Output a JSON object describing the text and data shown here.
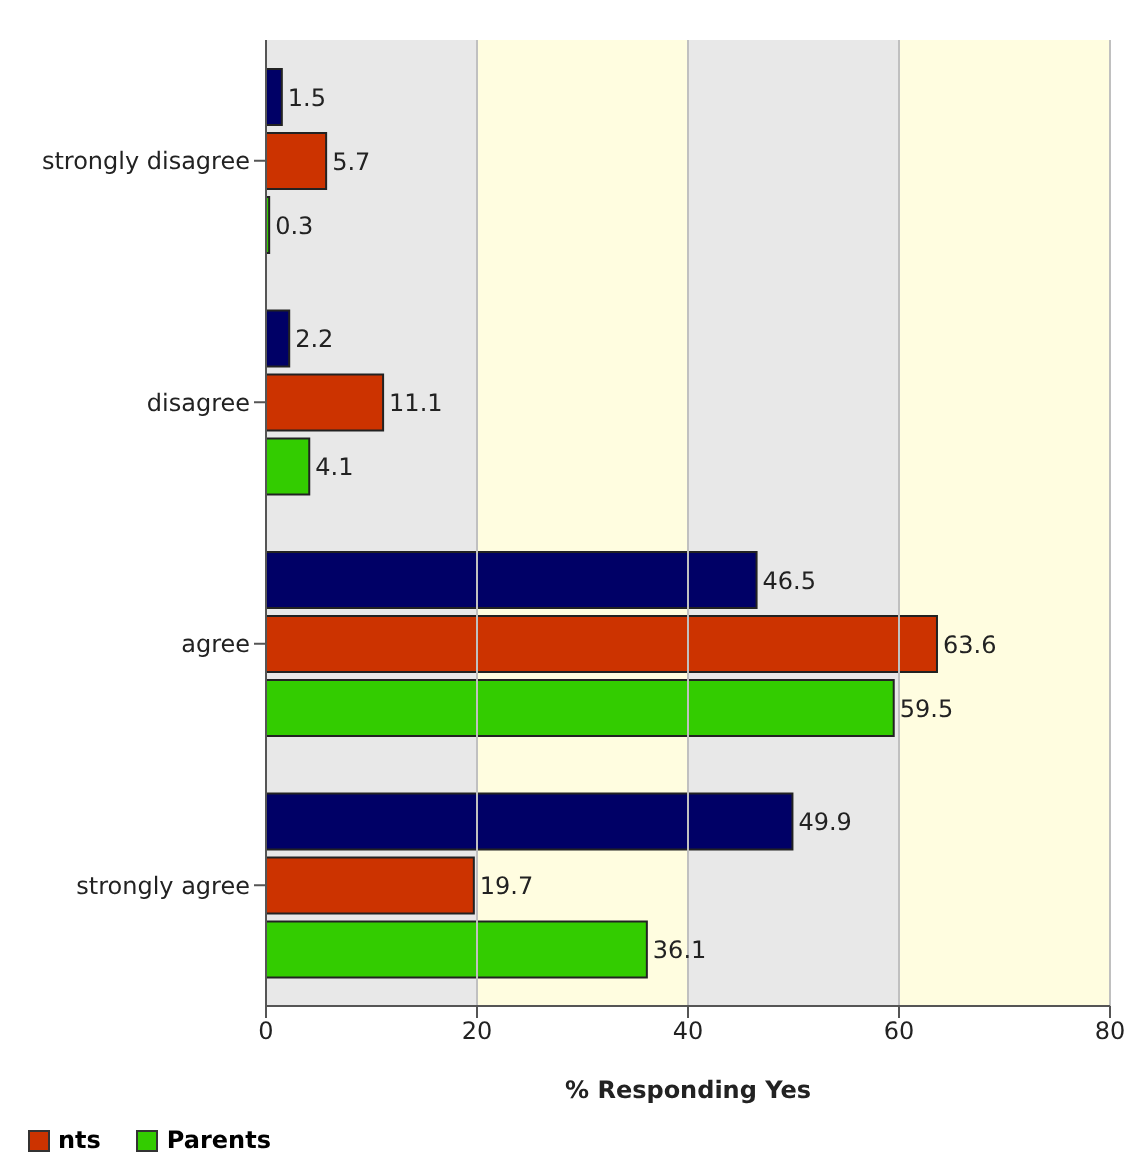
{
  "chart_data": {
    "type": "bar",
    "orientation": "horizontal",
    "xlabel": "% Responding Yes",
    "categories": [
      "strongly disagree",
      "disagree",
      "agree",
      "strongly agree"
    ],
    "series": [
      {
        "color": "#000066",
        "values": [
          1.5,
          2.2,
          46.5,
          49.9
        ]
      },
      {
        "name": "nts",
        "color": "#cc3300",
        "values": [
          5.7,
          11.1,
          63.6,
          19.7
        ]
      },
      {
        "name": "Parents",
        "color": "#33cc00",
        "values": [
          0.3,
          4.1,
          59.5,
          36.1
        ]
      }
    ],
    "xlim": [
      0,
      80
    ],
    "xticks": [
      0,
      20,
      40,
      60,
      80
    ],
    "grid": "x",
    "data_labels": true,
    "legend": "bottom left",
    "bands": [
      {
        "axis": "x",
        "from": 0,
        "to": 20,
        "color": "#e8e8e8"
      },
      {
        "axis": "x",
        "from": 20,
        "to": 40,
        "color": "#fffde0"
      },
      {
        "axis": "x",
        "from": 40,
        "to": 60,
        "color": "#e8e8e8"
      },
      {
        "axis": "x",
        "from": 60,
        "to": 80,
        "color": "#fffde0"
      }
    ]
  }
}
